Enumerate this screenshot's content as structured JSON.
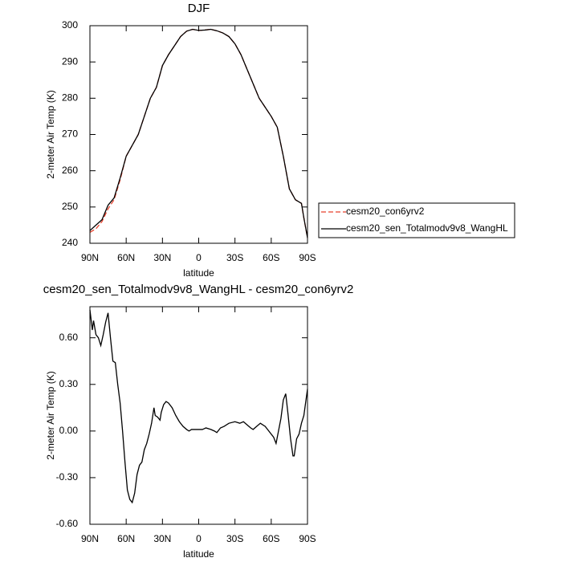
{
  "chart_data": [
    {
      "type": "line",
      "title": "DJF",
      "xlabel": "latitude",
      "ylabel": "2-meter Air Temp (K)",
      "x": [
        90,
        85,
        80,
        75,
        70,
        65,
        60,
        55,
        50,
        45,
        40,
        35,
        30,
        25,
        20,
        15,
        10,
        5,
        0,
        -5,
        -10,
        -15,
        -20,
        -25,
        -30,
        -35,
        -40,
        -45,
        -50,
        -55,
        -60,
        -65,
        -70,
        -75,
        -80,
        -85,
        -87,
        -90
      ],
      "series": [
        {
          "name": "cesm20_con6yrv2",
          "color": "#e8412c",
          "dashed": true,
          "values": [
            243,
            244,
            246,
            249.5,
            252,
            257.5,
            264,
            267,
            270,
            275,
            280,
            283,
            289,
            292,
            294.5,
            297,
            298.5,
            299,
            298.7,
            298.8,
            299,
            298.6,
            298,
            297,
            295,
            292,
            288,
            284,
            280,
            277.5,
            275,
            272,
            264,
            255,
            252,
            251,
            247,
            241.5
          ]
        },
        {
          "name": "cesm20_sen_Totalmodv9v8_WangHL",
          "color": "#000000",
          "dashed": false,
          "values": [
            243.5,
            245,
            246.5,
            250.5,
            252.5,
            258,
            264,
            267,
            270,
            275,
            280,
            283,
            289,
            292,
            294.5,
            297,
            298.5,
            299,
            298.7,
            298.8,
            299,
            298.6,
            298,
            297,
            295,
            292,
            288,
            284,
            280,
            277.5,
            275,
            272,
            264,
            255,
            252,
            251,
            247,
            241.5
          ]
        }
      ],
      "xlim": [
        90,
        -90
      ],
      "xticks": [
        {
          "value": 90,
          "label": "90N"
        },
        {
          "value": 60,
          "label": "60N"
        },
        {
          "value": 30,
          "label": "30N"
        },
        0,
        {
          "value": -30,
          "label": "30S"
        },
        {
          "value": -60,
          "label": "60S"
        },
        {
          "value": -90,
          "label": "90S"
        }
      ],
      "ylim": [
        240,
        300
      ],
      "yticks": [
        240,
        250,
        260,
        270,
        280,
        290,
        300
      ],
      "legend": "right"
    },
    {
      "type": "line",
      "title": "cesm20_sen_Totalmodv9v8_WangHL - cesm20_con6yrv2",
      "xlabel": "latitude",
      "ylabel": "2-meter Air Temp (K)",
      "x": [
        90,
        88,
        87,
        85,
        83,
        81,
        79,
        77,
        75,
        73,
        71,
        69,
        67,
        65,
        63,
        61,
        59,
        57,
        55,
        53,
        51,
        49,
        47,
        45,
        43,
        41,
        39,
        37,
        36,
        34,
        32,
        31,
        29,
        27,
        25,
        22,
        19,
        16,
        13,
        10,
        8,
        6,
        2,
        0,
        -3,
        -6,
        -10,
        -13,
        -15,
        -18,
        -21,
        -25,
        -30,
        -34,
        -37,
        -40,
        -43,
        -45,
        -48,
        -51,
        -55,
        -58,
        -62,
        -64,
        -66,
        -68,
        -70,
        -72,
        -74,
        -76,
        -78,
        -79,
        -81,
        -83,
        -85,
        -87,
        -90
      ],
      "series": [
        {
          "color": "#000000",
          "dashed": false,
          "values": [
            0.78,
            0.65,
            0.71,
            0.62,
            0.6,
            0.55,
            0.62,
            0.7,
            0.76,
            0.6,
            0.45,
            0.44,
            0.3,
            0.18,
            0,
            -0.2,
            -0.38,
            -0.44,
            -0.46,
            -0.4,
            -0.28,
            -0.22,
            -0.2,
            -0.12,
            -0.08,
            -0.02,
            0.05,
            0.15,
            0.1,
            0.09,
            0.07,
            0.12,
            0.17,
            0.19,
            0.18,
            0.15,
            0.1,
            0.06,
            0.03,
            0.01,
            0,
            0.01,
            0.01,
            0.01,
            0.01,
            0.02,
            0.01,
            0,
            -0.01,
            0.02,
            0.03,
            0.05,
            0.06,
            0.05,
            0.06,
            0.04,
            0.02,
            0.01,
            0.03,
            0.05,
            0.03,
            0,
            -0.04,
            -0.08,
            0,
            0.08,
            0.2,
            0.24,
            0.1,
            -0.05,
            -0.16,
            -0.16,
            -0.05,
            -0.02,
            0.05,
            0.1,
            0.27
          ]
        }
      ],
      "xlim": [
        90,
        -90
      ],
      "xticks": [
        {
          "value": 90,
          "label": "90N"
        },
        {
          "value": 60,
          "label": "60N"
        },
        {
          "value": 30,
          "label": "30N"
        },
        0,
        {
          "value": -30,
          "label": "30S"
        },
        {
          "value": -60,
          "label": "60S"
        },
        {
          "value": -90,
          "label": "90S"
        }
      ],
      "ylim": [
        -0.6,
        0.8
      ],
      "yticks": [
        {
          "value": -0.6,
          "label": "-0.60"
        },
        {
          "value": -0.3,
          "label": "-0.30"
        },
        {
          "value": 0,
          "label": "0.00"
        },
        {
          "value": 0.3,
          "label": "0.30"
        },
        {
          "value": 0.6,
          "label": "0.60"
        }
      ]
    }
  ]
}
